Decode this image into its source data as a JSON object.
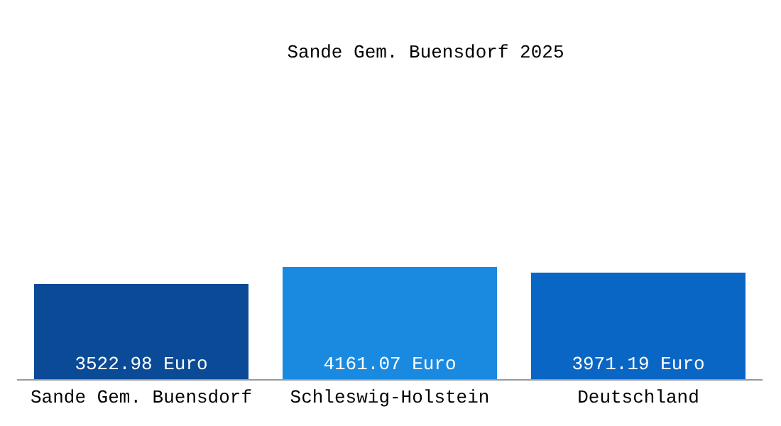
{
  "chart_data": {
    "type": "bar",
    "title": "Sande Gem. Buensdorf 2025",
    "categories": [
      "Sande Gem. Buensdorf",
      "Schleswig-Holstein",
      "Deutschland"
    ],
    "values": [
      3522.98,
      4161.07,
      3971.19
    ],
    "value_labels": [
      "3522.98 Euro",
      "4161.07 Euro",
      "3971.19 Euro"
    ],
    "colors": [
      "#0a4a96",
      "#1a8ae0",
      "#0a66c4"
    ],
    "legend": false
  }
}
